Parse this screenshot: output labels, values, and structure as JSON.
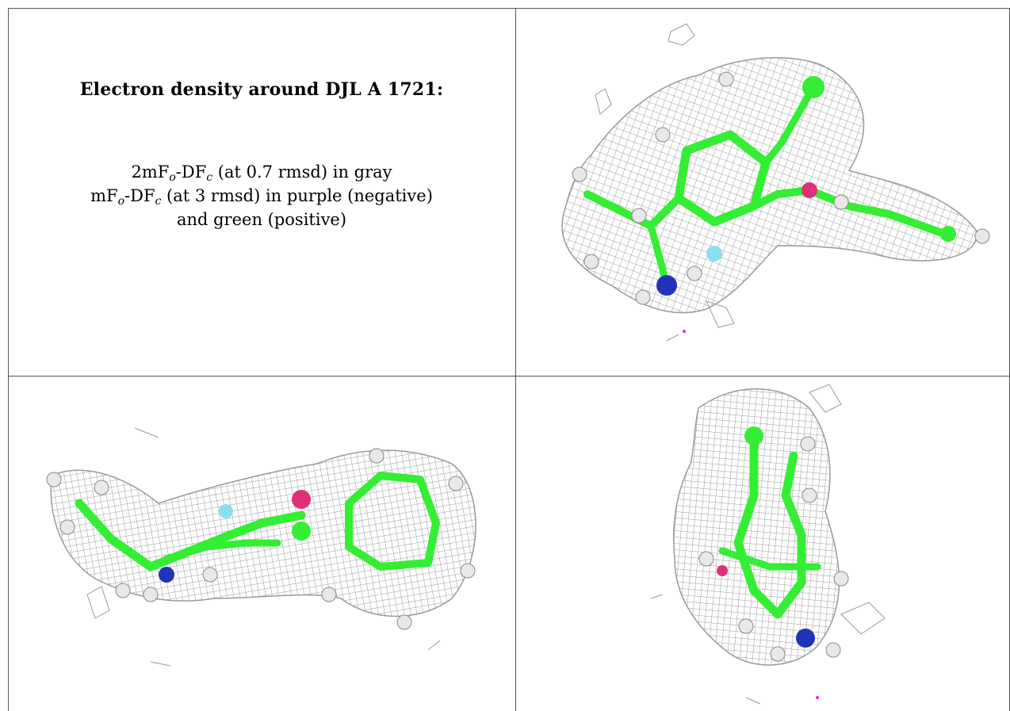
{
  "heading": "Electron density around DJL A 1721:",
  "legend": {
    "line1": {
      "prefix": "2mF",
      "sub1": "o",
      "mid": "-DF",
      "sub2": "c",
      "suffix": " (at 0.7 rmsd) in gray"
    },
    "line2": {
      "prefix": "mF",
      "sub1": "o",
      "mid": "-DF",
      "sub2": "c",
      "suffix": " (at 3 rmsd) in purple (negative)"
    },
    "line3": "and green (positive)"
  },
  "colors": {
    "mesh": "#9a9a9a",
    "carbon": "#33ee33",
    "hydrogen": "#e8e8e8",
    "nitrogen": "#2233bb",
    "oxygen": "#e0307a",
    "fluorine": "#88e0ee",
    "negative_blob": "#ee22cc",
    "border": "#555555"
  },
  "panels": [
    {
      "view": "top-right",
      "icons": [
        "mesh-icon",
        "molecule-icon"
      ]
    },
    {
      "view": "bottom-left",
      "icons": [
        "mesh-icon",
        "molecule-icon"
      ]
    },
    {
      "view": "bottom-right",
      "icons": [
        "mesh-icon",
        "molecule-icon"
      ]
    }
  ]
}
